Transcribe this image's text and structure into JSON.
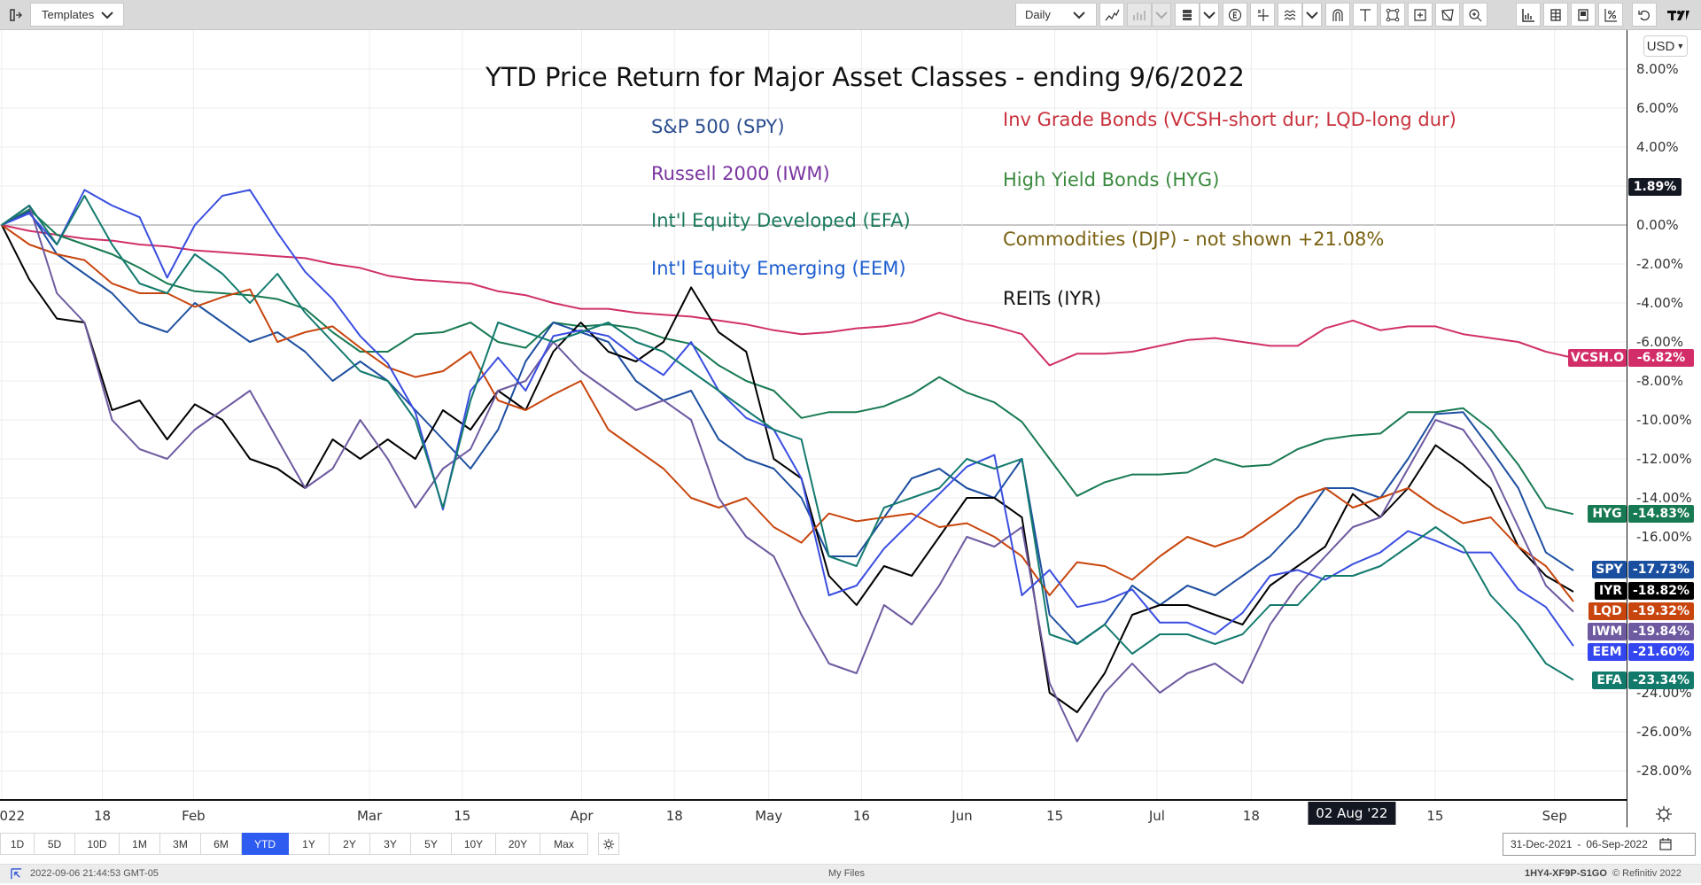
{
  "toolbar": {
    "templates_label": "Templates",
    "interval_label": "Daily",
    "tools": [
      "line-chart-icon",
      "chart-type-icon",
      "chevron-down-icon",
      "layout-icon",
      "chevron-down-icon",
      "events-icon",
      "crosshair-icon",
      "studies-icon",
      "chevron-down-icon",
      "magnet-icon",
      "text-icon",
      "select-region-icon",
      "zoom-region-icon",
      "draw-icon",
      "zoom-icon",
      "statistics-icon",
      "data-table-icon",
      "news-icon",
      "percent-icon",
      "undo-icon",
      "tradingview-logo-icon"
    ]
  },
  "currency": "USD",
  "crosshair_value": "1.89%",
  "chart_data": {
    "type": "line",
    "title": "YTD Price Return for Major Asset Classes - ending 9/6/2022",
    "xlabel": "",
    "ylabel": "",
    "ylim": [
      -30,
      9
    ],
    "y_ticks": [
      "8.00%",
      "6.00%",
      "4.00%",
      "0.00%",
      "-2.00%",
      "-4.00%",
      "-6.00%",
      "-8.00%",
      "-10.00%",
      "-12.00%",
      "-14.00%",
      "-16.00%",
      "-24.00%",
      "-26.00%",
      "-28.00%"
    ],
    "y_tick_values": [
      8,
      6,
      4,
      0,
      -2,
      -4,
      -6,
      -8,
      -10,
      -12,
      -14,
      -16,
      -24,
      -26,
      -28
    ],
    "x_range": [
      "31-Dec-2021",
      "06-Sep-2022"
    ],
    "x_ticks": [
      {
        "label": "2022",
        "pos": 0.0
      },
      {
        "label": "18",
        "pos": 0.064
      },
      {
        "label": "Feb",
        "pos": 0.122
      },
      {
        "label": "Mar",
        "pos": 0.234
      },
      {
        "label": "15",
        "pos": 0.293
      },
      {
        "label": "Apr",
        "pos": 0.369
      },
      {
        "label": "18",
        "pos": 0.428
      },
      {
        "label": "May",
        "pos": 0.488
      },
      {
        "label": "16",
        "pos": 0.547
      },
      {
        "label": "Jun",
        "pos": 0.611
      },
      {
        "label": "15",
        "pos": 0.67
      },
      {
        "label": "Jul",
        "pos": 0.735
      },
      {
        "label": "18",
        "pos": 0.795
      },
      {
        "label": "02 Aug '22",
        "pos": 0.859,
        "highlight": true
      },
      {
        "label": "15",
        "pos": 0.912
      },
      {
        "label": "Sep",
        "pos": 0.988
      }
    ],
    "legend_notes": [
      {
        "text": "S&P 500 (SPY)",
        "color": "#2a4d8f"
      },
      {
        "text": "Russell 2000 (IWM)",
        "color": "#7a35a0"
      },
      {
        "text": "Int'l Equity Developed (EFA)",
        "color": "#1b7a5e"
      },
      {
        "text": "Int'l Equity Emerging (EEM)",
        "color": "#1f5fd0"
      },
      {
        "text": "Inv Grade Bonds (VCSH-short dur; LQD-long dur)",
        "color": "#c8323c"
      },
      {
        "text": "High Yield Bonds (HYG)",
        "color": "#3a8a3e"
      },
      {
        "text": "Commodities (DJP) - not shown +21.08%",
        "color": "#7a6212"
      },
      {
        "text": "REITs (IYR)",
        "color": "#111111"
      }
    ],
    "series": [
      {
        "name": "VCSH.O",
        "color": "#d0306a",
        "last": "-6.82%",
        "values": [
          0,
          -0.3,
          -0.5,
          -0.7,
          -0.8,
          -1.0,
          -1.1,
          -1.3,
          -1.4,
          -1.5,
          -1.6,
          -1.7,
          -2.0,
          -2.2,
          -2.6,
          -2.8,
          -2.9,
          -3.0,
          -3.4,
          -3.6,
          -4.0,
          -4.3,
          -4.3,
          -4.5,
          -4.6,
          -4.7,
          -4.9,
          -5.1,
          -5.4,
          -5.6,
          -5.5,
          -5.3,
          -5.2,
          -5.0,
          -4.5,
          -4.9,
          -5.2,
          -5.6,
          -7.2,
          -6.6,
          -6.6,
          -6.5,
          -6.2,
          -5.9,
          -5.8,
          -6.0,
          -6.2,
          -6.2,
          -5.3,
          -4.9,
          -5.4,
          -5.2,
          -5.2,
          -5.6,
          -5.8,
          -6.0,
          -6.5,
          -6.82
        ]
      },
      {
        "name": "HYG",
        "color": "#187a52",
        "last": "-14.83%",
        "values": [
          0,
          0.8,
          -0.5,
          -1.0,
          -1.5,
          -2.2,
          -3.0,
          -3.4,
          -3.5,
          -3.6,
          -3.8,
          -4.3,
          -5.5,
          -6.5,
          -6.5,
          -5.6,
          -5.5,
          -5.0,
          -6.0,
          -6.3,
          -5.0,
          -5.2,
          -5.1,
          -5.3,
          -5.8,
          -6.1,
          -7.2,
          -8.0,
          -8.5,
          -9.9,
          -9.6,
          -9.6,
          -9.3,
          -8.7,
          -7.8,
          -8.6,
          -9.1,
          -10.1,
          -12.0,
          -13.9,
          -13.2,
          -12.8,
          -12.8,
          -12.7,
          -12.0,
          -12.4,
          -12.3,
          -11.5,
          -11.0,
          -10.8,
          -10.7,
          -9.6,
          -9.6,
          -9.4,
          -10.5,
          -12.3,
          -14.5,
          -14.83
        ]
      },
      {
        "name": "SPY",
        "color": "#1e4fa0",
        "last": "-17.73%",
        "values": [
          0,
          0.7,
          -1.5,
          -2.5,
          -3.5,
          -5.0,
          -5.5,
          -4.0,
          -5.0,
          -6.0,
          -5.5,
          -6.5,
          -8.0,
          -7.0,
          -8.0,
          -9.5,
          -11.0,
          -12.5,
          -10.5,
          -7.0,
          -5.0,
          -5.5,
          -6.0,
          -8.0,
          -9.0,
          -8.5,
          -11.0,
          -12.0,
          -12.5,
          -14.0,
          -17.0,
          -17.0,
          -15.0,
          -13.0,
          -12.5,
          -13.5,
          -14.0,
          -12.0,
          -20.0,
          -21.5,
          -20.5,
          -18.5,
          -19.5,
          -18.5,
          -19.0,
          -18.0,
          -17.0,
          -15.5,
          -13.5,
          -13.5,
          -14.0,
          -12.0,
          -9.7,
          -9.6,
          -11.5,
          -13.5,
          -16.8,
          -17.73
        ]
      },
      {
        "name": "IYR",
        "color": "#000000",
        "last": "-18.82%",
        "values": [
          0,
          -2.8,
          -4.8,
          -5.0,
          -9.5,
          -9.0,
          -11.0,
          -9.2,
          -10.0,
          -12.0,
          -12.5,
          -13.5,
          -11.0,
          -12.0,
          -11.0,
          -12.0,
          -9.5,
          -10.5,
          -8.5,
          -9.5,
          -6.5,
          -5.0,
          -6.5,
          -7.0,
          -6.0,
          -3.2,
          -5.5,
          -6.5,
          -12.0,
          -13.0,
          -18.0,
          -19.5,
          -17.5,
          -18.0,
          -16.0,
          -14.0,
          -14.0,
          -15.0,
          -24.0,
          -25.0,
          -23.0,
          -20.0,
          -19.5,
          -19.5,
          -20.0,
          -20.5,
          -18.5,
          -17.5,
          -16.5,
          -13.8,
          -15.0,
          -13.5,
          -11.3,
          -12.3,
          -13.5,
          -16.5,
          -18.0,
          -18.82
        ]
      },
      {
        "name": "LQD",
        "color": "#c8460e",
        "last": "-19.32%",
        "values": [
          0,
          -1.0,
          -1.5,
          -1.8,
          -3.0,
          -3.5,
          -3.5,
          -4.2,
          -3.7,
          -3.3,
          -6.0,
          -5.5,
          -5.2,
          -6.3,
          -7.3,
          -7.8,
          -7.5,
          -6.5,
          -9.0,
          -9.5,
          -8.7,
          -8.0,
          -10.5,
          -11.5,
          -12.5,
          -14.0,
          -14.5,
          -14.0,
          -15.5,
          -16.3,
          -14.8,
          -15.2,
          -15.0,
          -14.8,
          -15.5,
          -15.3,
          -16.0,
          -17.0,
          -19.0,
          -17.3,
          -17.5,
          -18.2,
          -17.0,
          -16.0,
          -16.5,
          -16.0,
          -15.0,
          -14.0,
          -13.5,
          -14.5,
          -14.0,
          -13.5,
          -14.5,
          -15.3,
          -15.0,
          -16.5,
          -17.5,
          -19.32
        ]
      },
      {
        "name": "IWM",
        "color": "#6e5aa0",
        "last": "-19.84%",
        "values": [
          0,
          1.0,
          -3.5,
          -5.0,
          -10.0,
          -11.5,
          -12.0,
          -10.5,
          -9.5,
          -8.5,
          -11.0,
          -13.5,
          -12.5,
          -10.0,
          -12.0,
          -14.5,
          -12.5,
          -11.5,
          -8.5,
          -8.0,
          -6.0,
          -7.5,
          -8.5,
          -9.5,
          -9.0,
          -10.0,
          -14.0,
          -16.0,
          -17.0,
          -20.0,
          -22.5,
          -23.0,
          -19.5,
          -20.5,
          -18.5,
          -16.0,
          -16.5,
          -15.5,
          -23.5,
          -26.5,
          -24.0,
          -22.5,
          -24.0,
          -23.0,
          -22.5,
          -23.5,
          -20.5,
          -18.5,
          -17.0,
          -15.5,
          -15.0,
          -12.5,
          -10.0,
          -10.5,
          -12.5,
          -15.5,
          -18.5,
          -19.84
        ]
      },
      {
        "name": "EEM",
        "color": "#3a4ee0",
        "last": "-21.60%",
        "values": [
          0,
          0.6,
          -1.0,
          1.8,
          1.0,
          0.4,
          -2.7,
          0,
          1.5,
          1.8,
          -0.4,
          -2.4,
          -3.8,
          -5.7,
          -7.1,
          -9.6,
          -14.6,
          -8.5,
          -6.8,
          -8.5,
          -5.7,
          -5.4,
          -5.7,
          -6.8,
          -7.7,
          -6.0,
          -8.5,
          -9.9,
          -10.5,
          -13.0,
          -19.0,
          -18.5,
          -16.6,
          -15.2,
          -13.8,
          -12.4,
          -11.8,
          -19.0,
          -17.7,
          -19.6,
          -19.3,
          -18.7,
          -20.4,
          -20.4,
          -21.0,
          -19.9,
          -18.0,
          -17.7,
          -18.2,
          -17.4,
          -16.8,
          -15.7,
          -16.2,
          -16.8,
          -16.8,
          -18.7,
          -19.6,
          -21.6
        ]
      },
      {
        "name": "EFA",
        "color": "#137a6e",
        "last": "-23.34%",
        "values": [
          0,
          1.0,
          -1.0,
          1.5,
          -1.0,
          -3.0,
          -3.5,
          -1.5,
          -2.5,
          -4.0,
          -2.5,
          -4.5,
          -6.0,
          -7.5,
          -8.0,
          -10.0,
          -14.5,
          -9.0,
          -5.0,
          -5.5,
          -6.0,
          -5.5,
          -5.0,
          -6.0,
          -6.5,
          -7.5,
          -8.5,
          -9.5,
          -10.5,
          -11.0,
          -17.0,
          -17.5,
          -14.5,
          -14.0,
          -13.5,
          -12.0,
          -12.5,
          -12.0,
          -21.0,
          -21.5,
          -20.5,
          -22.0,
          -21.0,
          -21.0,
          -21.5,
          -21.0,
          -19.5,
          -19.5,
          -18.0,
          -18.0,
          -17.5,
          -16.5,
          -15.5,
          -16.5,
          -19.0,
          -20.5,
          -22.5,
          -23.34
        ]
      }
    ]
  },
  "tags": [
    {
      "sym": "VCSH.O",
      "val": "-6.82%",
      "color": "#d22d68"
    },
    {
      "sym": "HYG",
      "val": "-14.83%",
      "color": "#187a52"
    },
    {
      "sym": "SPY",
      "val": "-17.73%",
      "color": "#1a4fa0"
    },
    {
      "sym": "IYR",
      "val": "-18.82%",
      "color": "#000000"
    },
    {
      "sym": "LQD",
      "val": "-19.32%",
      "color": "#c8460e"
    },
    {
      "sym": "IWM",
      "val": "-19.84%",
      "color": "#6e5aa0"
    },
    {
      "sym": "EEM",
      "val": "-21.60%",
      "color": "#3346f0"
    },
    {
      "sym": "EFA",
      "val": "-23.34%",
      "color": "#127a6a"
    }
  ],
  "periods": [
    "1D",
    "5D",
    "10D",
    "1M",
    "3M",
    "6M",
    "YTD",
    "1Y",
    "2Y",
    "3Y",
    "5Y",
    "10Y",
    "20Y",
    "Max"
  ],
  "active_period": "YTD",
  "date_range": {
    "start": "31-Dec-2021",
    "separator": "-",
    "end": "06-Sep-2022"
  },
  "status": {
    "timestamp": "2022-09-06 21:44:53 GMT-05",
    "center": "My Files",
    "code": "1HY4-XF9P-S1GO",
    "copyright": "© Refinitiv 2022"
  }
}
